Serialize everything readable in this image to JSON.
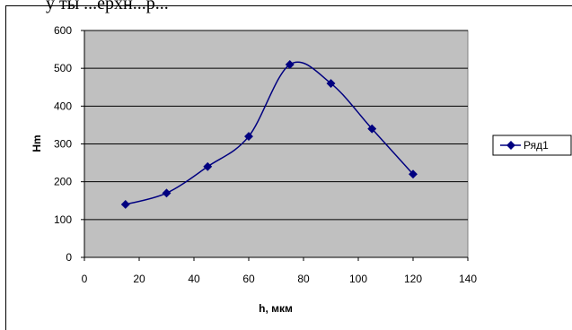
{
  "header": {
    "partial_caption": "у ты ...ерхн...р..."
  },
  "chart_data": {
    "type": "line",
    "xlabel": "h, мкм",
    "ylabel": "Hm",
    "xlim": [
      0,
      140
    ],
    "ylim": [
      0,
      600
    ],
    "x_ticks": [
      0,
      20,
      40,
      60,
      80,
      100,
      120,
      140
    ],
    "y_ticks": [
      0,
      100,
      200,
      300,
      400,
      500,
      600
    ],
    "grid": true,
    "smooth": true,
    "legend_position": "right",
    "plot_background": "#c0c0c0",
    "series_color": "#000080",
    "series": [
      {
        "name": "Ряд1",
        "x": [
          15,
          30,
          45,
          60,
          75,
          90,
          105,
          120
        ],
        "values": [
          140,
          170,
          240,
          320,
          510,
          460,
          340,
          220
        ]
      }
    ]
  }
}
